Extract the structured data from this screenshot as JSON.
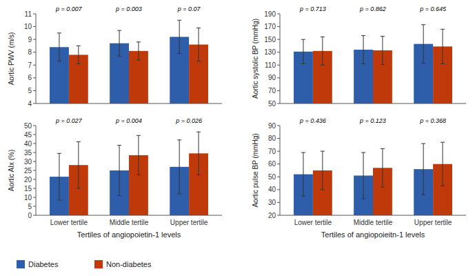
{
  "chart_data": [
    {
      "type": "bar",
      "categories": [
        "Lower tertile",
        "Middle tertile",
        "Upper tertile"
      ],
      "series": [
        {
          "name": "Diabetes",
          "color": "#2E5EAA",
          "values": [
            8.4,
            8.7,
            9.2
          ],
          "errors": [
            1.1,
            1.0,
            1.3
          ]
        },
        {
          "name": "Non-diabetes",
          "color": "#C0390A",
          "values": [
            7.8,
            8.1,
            8.6
          ],
          "errors": [
            0.7,
            0.7,
            1.3
          ]
        }
      ],
      "ylabel": "Aortic PWV (m/s)",
      "ylim": [
        4,
        11
      ],
      "yticks": [
        4,
        5,
        6,
        7,
        8,
        9,
        10,
        11
      ],
      "annotations": [
        "p = 0.007",
        "p = 0.003",
        "p = 0.07"
      ],
      "tick_labels": "y"
    },
    {
      "type": "bar",
      "categories": [
        "Lower tertile",
        "Middle tertile",
        "Upper tertile"
      ],
      "series": [
        {
          "name": "Diabetes",
          "color": "#2E5EAA",
          "values": [
            131,
            134,
            143
          ],
          "errors": [
            19,
            22,
            30
          ]
        },
        {
          "name": "Non-diabetes",
          "color": "#C0390A",
          "values": [
            132,
            133,
            139
          ],
          "errors": [
            22,
            22,
            27
          ]
        }
      ],
      "ylabel": "Aortic systolic BP (mmHg)",
      "ylim": [
        50,
        190
      ],
      "yticks": [
        50,
        70,
        90,
        110,
        130,
        150,
        170,
        190
      ],
      "annotations": [
        "p = 0.713",
        "p = 0.862",
        "p = 0.645"
      ],
      "tick_labels": "y"
    },
    {
      "type": "bar",
      "categories": [
        "Lower tertile",
        "Middle tertile",
        "Upper tertile"
      ],
      "series": [
        {
          "name": "Diabetes",
          "color": "#2E5EAA",
          "values": [
            21.5,
            25,
            27
          ],
          "errors": [
            13,
            14,
            15
          ]
        },
        {
          "name": "Non-diabetes",
          "color": "#C0390A",
          "values": [
            28,
            33.5,
            34.5
          ],
          "errors": [
            13,
            11,
            12
          ]
        }
      ],
      "ylabel": "Aortic AIx (%)",
      "xlabel": "Tertiles of angiopoietin-1 levels",
      "ylim": [
        0,
        50
      ],
      "yticks": [
        0,
        5,
        10,
        15,
        20,
        25,
        30,
        35,
        40,
        45,
        50
      ],
      "annotations": [
        "p = 0.027",
        "p = 0.004",
        "p = 0.026"
      ],
      "legend": "lower left"
    },
    {
      "type": "bar",
      "categories": [
        "Lower tertile",
        "Middle tertile",
        "Upper tertile"
      ],
      "series": [
        {
          "name": "Diabetes",
          "color": "#2E5EAA",
          "values": [
            52,
            51,
            56
          ],
          "errors": [
            17,
            18,
            20
          ]
        },
        {
          "name": "Non-diabetes",
          "color": "#C0390A",
          "values": [
            55,
            57,
            60
          ],
          "errors": [
            15,
            15,
            17
          ]
        }
      ],
      "ylabel": "Aortic pulse BP (mmHg)",
      "xlabel": "Tertiles of angiopoieitn-1 levels",
      "ylim": [
        20,
        90
      ],
      "yticks": [
        20,
        30,
        40,
        50,
        60,
        70,
        80,
        90
      ],
      "annotations": [
        "p = 0.436",
        "p = 0.123",
        "p = 0.368"
      ]
    }
  ]
}
